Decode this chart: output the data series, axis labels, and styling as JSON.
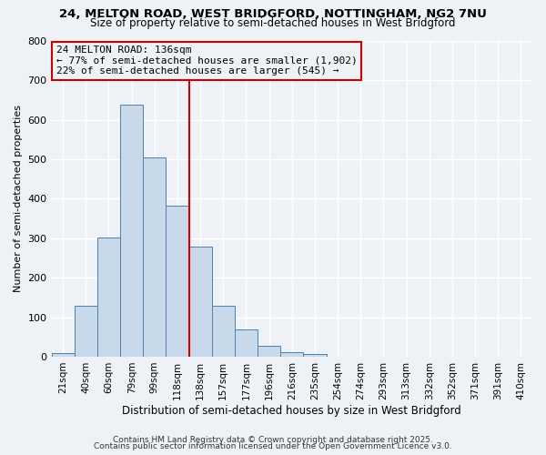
{
  "title1": "24, MELTON ROAD, WEST BRIDGFORD, NOTTINGHAM, NG2 7NU",
  "title2": "Size of property relative to semi-detached houses in West Bridgford",
  "xlabel": "Distribution of semi-detached houses by size in West Bridgford",
  "ylabel": "Number of semi-detached properties",
  "categories": [
    "21sqm",
    "40sqm",
    "60sqm",
    "79sqm",
    "99sqm",
    "118sqm",
    "138sqm",
    "157sqm",
    "177sqm",
    "196sqm",
    "216sqm",
    "235sqm",
    "254sqm",
    "274sqm",
    "293sqm",
    "313sqm",
    "332sqm",
    "352sqm",
    "371sqm",
    "391sqm",
    "410sqm"
  ],
  "values": [
    10,
    128,
    302,
    638,
    504,
    383,
    280,
    130,
    70,
    27,
    12,
    7,
    0,
    0,
    0,
    0,
    0,
    0,
    0,
    0,
    0
  ],
  "bar_color": "#c8d9ea",
  "bar_edge_color": "#4f7faa",
  "vline_x": 6,
  "vline_color": "#cc0000",
  "annotation_title": "24 MELTON ROAD: 136sqm",
  "annotation_line1": "← 77% of semi-detached houses are smaller (1,902)",
  "annotation_line2": "22% of semi-detached houses are larger (545) →",
  "annotation_box_color": "#cc0000",
  "ylim": [
    0,
    800
  ],
  "yticks": [
    0,
    100,
    200,
    300,
    400,
    500,
    600,
    700,
    800
  ],
  "footnote1": "Contains HM Land Registry data © Crown copyright and database right 2025.",
  "footnote2": "Contains public sector information licensed under the Open Government Licence v3.0.",
  "bg_color": "#eef2f7",
  "grid_color": "#ffffff"
}
